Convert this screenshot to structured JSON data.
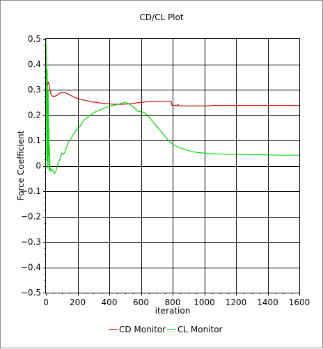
{
  "chart_data": {
    "type": "line",
    "title": "CD/CL Plot",
    "xlabel": "iteration",
    "ylabel": "Force Coefficient",
    "xlim": [
      0,
      1600
    ],
    "ylim": [
      -0.5,
      0.5
    ],
    "x_ticks": [
      0,
      200,
      400,
      600,
      800,
      1000,
      1200,
      1400,
      1600
    ],
    "y_ticks": [
      -0.5,
      -0.4,
      -0.3,
      -0.2,
      -0.1,
      0,
      0.1,
      0.2,
      0.3,
      0.4,
      0.5
    ],
    "x_tick_labels": [
      "0",
      "200",
      "400",
      "600",
      "800",
      "1000",
      "1200",
      "1400",
      "1600"
    ],
    "y_tick_labels": [
      "−0.5",
      "−0.4",
      "−0.3",
      "−0.2",
      "−0.1",
      "0",
      "0.1",
      "0.2",
      "0.3",
      "0.4",
      "0.5"
    ],
    "grid": true,
    "legend_position": "bottom",
    "series": [
      {
        "name": "CD Monitor",
        "color": "#cc0000",
        "x": [
          0,
          5,
          10,
          15,
          20,
          25,
          30,
          40,
          50,
          60,
          70,
          80,
          90,
          100,
          120,
          140,
          160,
          180,
          200,
          250,
          300,
          350,
          400,
          450,
          500,
          550,
          600,
          650,
          700,
          750,
          790,
          795,
          800,
          820,
          830,
          835,
          840,
          850,
          900,
          950,
          1000,
          1040,
          1050,
          1100,
          1200,
          1300,
          1400,
          1500,
          1600
        ],
        "y": [
          0.3,
          0.31,
          0.32,
          0.33,
          0.32,
          0.3,
          0.285,
          0.275,
          0.273,
          0.275,
          0.278,
          0.283,
          0.287,
          0.29,
          0.288,
          0.283,
          0.276,
          0.27,
          0.265,
          0.257,
          0.251,
          0.247,
          0.244,
          0.242,
          0.243,
          0.246,
          0.25,
          0.253,
          0.254,
          0.255,
          0.254,
          0.24,
          0.238,
          0.238,
          0.237,
          0.242,
          0.237,
          0.236,
          0.236,
          0.236,
          0.236,
          0.236,
          0.238,
          0.238,
          0.238,
          0.238,
          0.238,
          0.238,
          0.238
        ]
      },
      {
        "name": "CL Monitor",
        "color": "#00dd00",
        "x": [
          0,
          2,
          4,
          6,
          8,
          10,
          12,
          14,
          16,
          18,
          20,
          22,
          24,
          26,
          28,
          30,
          35,
          40,
          45,
          50,
          55,
          60,
          65,
          70,
          75,
          80,
          85,
          90,
          95,
          100,
          110,
          120,
          130,
          140,
          150,
          160,
          170,
          180,
          190,
          200,
          220,
          240,
          260,
          280,
          300,
          320,
          340,
          360,
          380,
          400,
          420,
          440,
          460,
          480,
          500,
          520,
          540,
          560,
          580,
          600,
          620,
          640,
          660,
          680,
          700,
          720,
          740,
          760,
          780,
          800,
          850,
          900,
          950,
          1000,
          1050,
          1100,
          1150,
          1200,
          1300,
          1400,
          1500,
          1600
        ],
        "y": [
          0.5,
          0.44,
          0.2,
          0.02,
          0.38,
          0.1,
          -0.01,
          0.3,
          0.04,
          0.15,
          -0.02,
          0.08,
          0.01,
          -0.015,
          -0.01,
          -0.02,
          -0.02,
          -0.015,
          -0.02,
          -0.025,
          -0.03,
          -0.025,
          -0.015,
          -0.005,
          0.005,
          0.015,
          0.02,
          0.03,
          0.04,
          0.05,
          0.045,
          0.055,
          0.075,
          0.09,
          0.1,
          0.11,
          0.12,
          0.13,
          0.14,
          0.145,
          0.16,
          0.18,
          0.19,
          0.2,
          0.208,
          0.215,
          0.22,
          0.225,
          0.23,
          0.235,
          0.238,
          0.24,
          0.243,
          0.247,
          0.25,
          0.245,
          0.238,
          0.228,
          0.215,
          0.213,
          0.21,
          0.2,
          0.185,
          0.17,
          0.155,
          0.14,
          0.125,
          0.11,
          0.095,
          0.085,
          0.07,
          0.06,
          0.053,
          0.05,
          0.048,
          0.046,
          0.045,
          0.045,
          0.044,
          0.043,
          0.042,
          0.042
        ]
      }
    ]
  }
}
